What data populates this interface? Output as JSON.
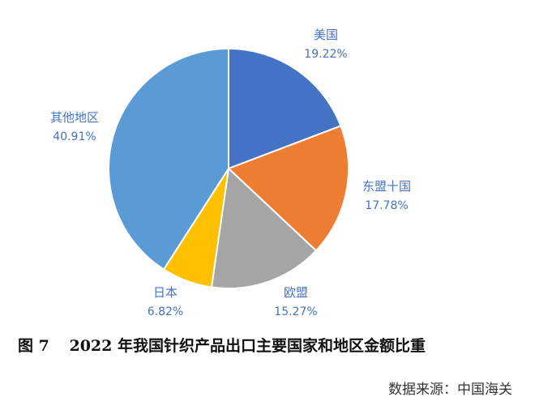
{
  "chart_data": {
    "type": "pie",
    "categories": [
      "美国",
      "东盟十国",
      "欧盟",
      "日本",
      "其他地区"
    ],
    "values": [
      19.22,
      17.78,
      15.27,
      6.82,
      40.91
    ],
    "value_labels": [
      "19.22%",
      "17.78%",
      "15.27%",
      "6.82%",
      "40.91%"
    ],
    "colors": [
      "#4472C4",
      "#ED7D31",
      "#A5A5A5",
      "#FFC000",
      "#5B9BD5"
    ],
    "label_color": "#4472C4",
    "start": "12 o'clock",
    "direction": "clockwise"
  },
  "caption": {
    "figure_number": "图 7",
    "title": "2022 年我国针织产品出口主要国家和地区金额比重"
  },
  "source": "数据来源：中国海关"
}
